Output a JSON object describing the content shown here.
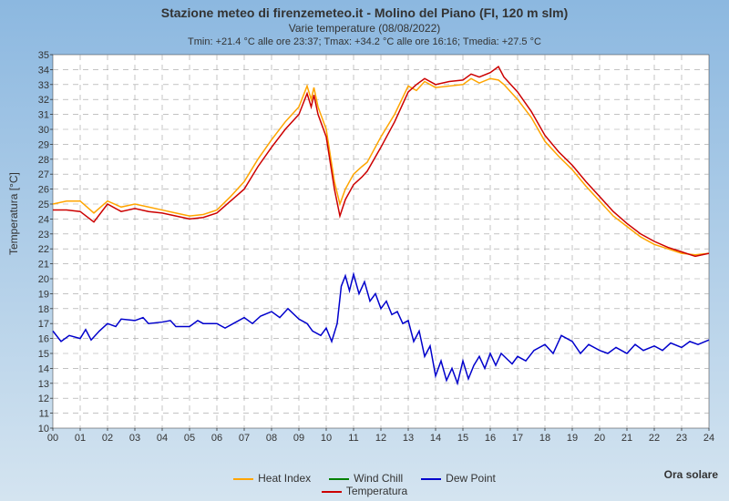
{
  "title1": "Stazione meteo di firenzemeteo.it - Molino del Piano (FI, 120 m slm)",
  "title2": "Varie temperature (08/08/2022)",
  "subtitle": "Tmin: +21.4 °C alle ore 23:37; Tmax: +34.2 °C alle ore 16:16; Tmedia: +27.5 °C",
  "ylabel": "Temperatura [°C]",
  "xlabel": "Ora solare",
  "chart": {
    "type": "line",
    "background_color": "#ffffff",
    "grid_color": "#a0a0a0",
    "xlim": [
      0,
      24
    ],
    "ylim": [
      10,
      35
    ],
    "xtick_step": 1,
    "ytick_step": 1,
    "xtick_labels": [
      "00",
      "01",
      "02",
      "03",
      "04",
      "05",
      "06",
      "07",
      "08",
      "09",
      "10",
      "11",
      "12",
      "13",
      "14",
      "15",
      "16",
      "17",
      "18",
      "19",
      "20",
      "21",
      "22",
      "23",
      "24"
    ],
    "series": [
      {
        "name": "Heat Index",
        "color": "#ffa500",
        "width": 1.5,
        "data": [
          [
            0,
            25.0
          ],
          [
            0.5,
            25.2
          ],
          [
            1,
            25.2
          ],
          [
            1.5,
            24.4
          ],
          [
            2,
            25.2
          ],
          [
            2.5,
            24.8
          ],
          [
            3,
            25.0
          ],
          [
            3.5,
            24.8
          ],
          [
            4,
            24.6
          ],
          [
            4.5,
            24.4
          ],
          [
            5,
            24.2
          ],
          [
            5.5,
            24.3
          ],
          [
            6,
            24.6
          ],
          [
            6.5,
            25.5
          ],
          [
            7,
            26.5
          ],
          [
            7.5,
            28.0
          ],
          [
            8,
            29.3
          ],
          [
            8.5,
            30.5
          ],
          [
            9,
            31.5
          ],
          [
            9.3,
            32.9
          ],
          [
            9.45,
            32.0
          ],
          [
            9.55,
            32.8
          ],
          [
            9.7,
            31.5
          ],
          [
            10,
            30.0
          ],
          [
            10.3,
            26.5
          ],
          [
            10.5,
            25.0
          ],
          [
            10.7,
            26.0
          ],
          [
            11,
            27.0
          ],
          [
            11.3,
            27.5
          ],
          [
            11.5,
            27.8
          ],
          [
            12,
            29.5
          ],
          [
            12.5,
            31.0
          ],
          [
            13,
            32.9
          ],
          [
            13.3,
            32.6
          ],
          [
            13.6,
            33.2
          ],
          [
            14,
            32.8
          ],
          [
            14.5,
            32.9
          ],
          [
            15,
            33.0
          ],
          [
            15.3,
            33.4
          ],
          [
            15.6,
            33.1
          ],
          [
            16,
            33.4
          ],
          [
            16.3,
            33.3
          ],
          [
            16.5,
            33.0
          ],
          [
            17,
            32.0
          ],
          [
            17.5,
            30.8
          ],
          [
            18,
            29.2
          ],
          [
            18.5,
            28.2
          ],
          [
            19,
            27.3
          ],
          [
            19.5,
            26.2
          ],
          [
            20,
            25.2
          ],
          [
            20.5,
            24.2
          ],
          [
            21,
            23.5
          ],
          [
            21.5,
            22.8
          ],
          [
            22,
            22.3
          ],
          [
            22.5,
            22.0
          ],
          [
            23,
            21.7
          ],
          [
            23.5,
            21.6
          ],
          [
            24,
            21.7
          ]
        ]
      },
      {
        "name": "Wind Chill",
        "color": "#008000",
        "width": 1.5,
        "data": []
      },
      {
        "name": "Dew Point",
        "color": "#0000cc",
        "width": 1.5,
        "data": [
          [
            0,
            16.5
          ],
          [
            0.3,
            15.8
          ],
          [
            0.6,
            16.2
          ],
          [
            1,
            16.0
          ],
          [
            1.2,
            16.6
          ],
          [
            1.4,
            15.9
          ],
          [
            1.7,
            16.5
          ],
          [
            2,
            17.0
          ],
          [
            2.3,
            16.8
          ],
          [
            2.5,
            17.3
          ],
          [
            3,
            17.2
          ],
          [
            3.3,
            17.4
          ],
          [
            3.5,
            17.0
          ],
          [
            4,
            17.1
          ],
          [
            4.3,
            17.2
          ],
          [
            4.5,
            16.8
          ],
          [
            5,
            16.8
          ],
          [
            5.3,
            17.2
          ],
          [
            5.5,
            17.0
          ],
          [
            6,
            17.0
          ],
          [
            6.3,
            16.7
          ],
          [
            6.6,
            17.0
          ],
          [
            7,
            17.4
          ],
          [
            7.3,
            17.0
          ],
          [
            7.6,
            17.5
          ],
          [
            8,
            17.8
          ],
          [
            8.3,
            17.4
          ],
          [
            8.6,
            18.0
          ],
          [
            9,
            17.3
          ],
          [
            9.3,
            17.0
          ],
          [
            9.5,
            16.5
          ],
          [
            9.8,
            16.2
          ],
          [
            10,
            16.7
          ],
          [
            10.2,
            15.8
          ],
          [
            10.4,
            17.0
          ],
          [
            10.55,
            19.5
          ],
          [
            10.7,
            20.2
          ],
          [
            10.85,
            19.2
          ],
          [
            11,
            20.3
          ],
          [
            11.2,
            19.0
          ],
          [
            11.4,
            19.8
          ],
          [
            11.6,
            18.5
          ],
          [
            11.8,
            19.0
          ],
          [
            12,
            18.0
          ],
          [
            12.2,
            18.5
          ],
          [
            12.4,
            17.6
          ],
          [
            12.6,
            17.8
          ],
          [
            12.8,
            17.0
          ],
          [
            13,
            17.2
          ],
          [
            13.2,
            15.8
          ],
          [
            13.4,
            16.5
          ],
          [
            13.6,
            14.8
          ],
          [
            13.8,
            15.5
          ],
          [
            14,
            13.5
          ],
          [
            14.2,
            14.5
          ],
          [
            14.4,
            13.2
          ],
          [
            14.6,
            14.0
          ],
          [
            14.8,
            13.0
          ],
          [
            15,
            14.5
          ],
          [
            15.2,
            13.3
          ],
          [
            15.4,
            14.2
          ],
          [
            15.6,
            14.8
          ],
          [
            15.8,
            14.0
          ],
          [
            16,
            15.0
          ],
          [
            16.2,
            14.2
          ],
          [
            16.4,
            15.0
          ],
          [
            16.8,
            14.3
          ],
          [
            17,
            14.8
          ],
          [
            17.3,
            14.5
          ],
          [
            17.6,
            15.2
          ],
          [
            18,
            15.6
          ],
          [
            18.3,
            15.0
          ],
          [
            18.6,
            16.2
          ],
          [
            19,
            15.8
          ],
          [
            19.3,
            15.0
          ],
          [
            19.6,
            15.6
          ],
          [
            20,
            15.2
          ],
          [
            20.3,
            15.0
          ],
          [
            20.6,
            15.4
          ],
          [
            21,
            15.0
          ],
          [
            21.3,
            15.6
          ],
          [
            21.6,
            15.2
          ],
          [
            22,
            15.5
          ],
          [
            22.3,
            15.2
          ],
          [
            22.6,
            15.7
          ],
          [
            23,
            15.4
          ],
          [
            23.3,
            15.8
          ],
          [
            23.6,
            15.6
          ],
          [
            24,
            15.9
          ]
        ]
      },
      {
        "name": "Temperatura",
        "color": "#cc0000",
        "width": 1.5,
        "data": [
          [
            0,
            24.6
          ],
          [
            0.5,
            24.6
          ],
          [
            1,
            24.5
          ],
          [
            1.5,
            23.8
          ],
          [
            2,
            25.0
          ],
          [
            2.5,
            24.5
          ],
          [
            3,
            24.7
          ],
          [
            3.5,
            24.5
          ],
          [
            4,
            24.4
          ],
          [
            4.5,
            24.2
          ],
          [
            5,
            24.0
          ],
          [
            5.5,
            24.1
          ],
          [
            6,
            24.4
          ],
          [
            6.5,
            25.2
          ],
          [
            7,
            26.0
          ],
          [
            7.5,
            27.5
          ],
          [
            8,
            28.8
          ],
          [
            8.5,
            30.0
          ],
          [
            9,
            31.0
          ],
          [
            9.3,
            32.4
          ],
          [
            9.45,
            31.5
          ],
          [
            9.55,
            32.3
          ],
          [
            9.7,
            31.0
          ],
          [
            10,
            29.5
          ],
          [
            10.3,
            26.0
          ],
          [
            10.5,
            24.2
          ],
          [
            10.7,
            25.3
          ],
          [
            11,
            26.3
          ],
          [
            11.3,
            26.8
          ],
          [
            11.5,
            27.2
          ],
          [
            12,
            28.8
          ],
          [
            12.5,
            30.5
          ],
          [
            13,
            32.5
          ],
          [
            13.3,
            33.0
          ],
          [
            13.6,
            33.4
          ],
          [
            14,
            33.0
          ],
          [
            14.5,
            33.2
          ],
          [
            15,
            33.3
          ],
          [
            15.3,
            33.7
          ],
          [
            15.6,
            33.5
          ],
          [
            16,
            33.8
          ],
          [
            16.3,
            34.2
          ],
          [
            16.5,
            33.5
          ],
          [
            17,
            32.5
          ],
          [
            17.5,
            31.2
          ],
          [
            18,
            29.6
          ],
          [
            18.5,
            28.5
          ],
          [
            19,
            27.6
          ],
          [
            19.5,
            26.5
          ],
          [
            20,
            25.5
          ],
          [
            20.5,
            24.5
          ],
          [
            21,
            23.7
          ],
          [
            21.5,
            23.0
          ],
          [
            22,
            22.5
          ],
          [
            22.5,
            22.1
          ],
          [
            23,
            21.8
          ],
          [
            23.5,
            21.5
          ],
          [
            24,
            21.7
          ]
        ]
      }
    ],
    "legend_items": [
      {
        "label": "Heat Index",
        "color": "#ffa500"
      },
      {
        "label": "Wind Chill",
        "color": "#008000"
      },
      {
        "label": "Dew Point",
        "color": "#0000cc"
      },
      {
        "label": "Temperatura",
        "color": "#cc0000"
      }
    ]
  }
}
